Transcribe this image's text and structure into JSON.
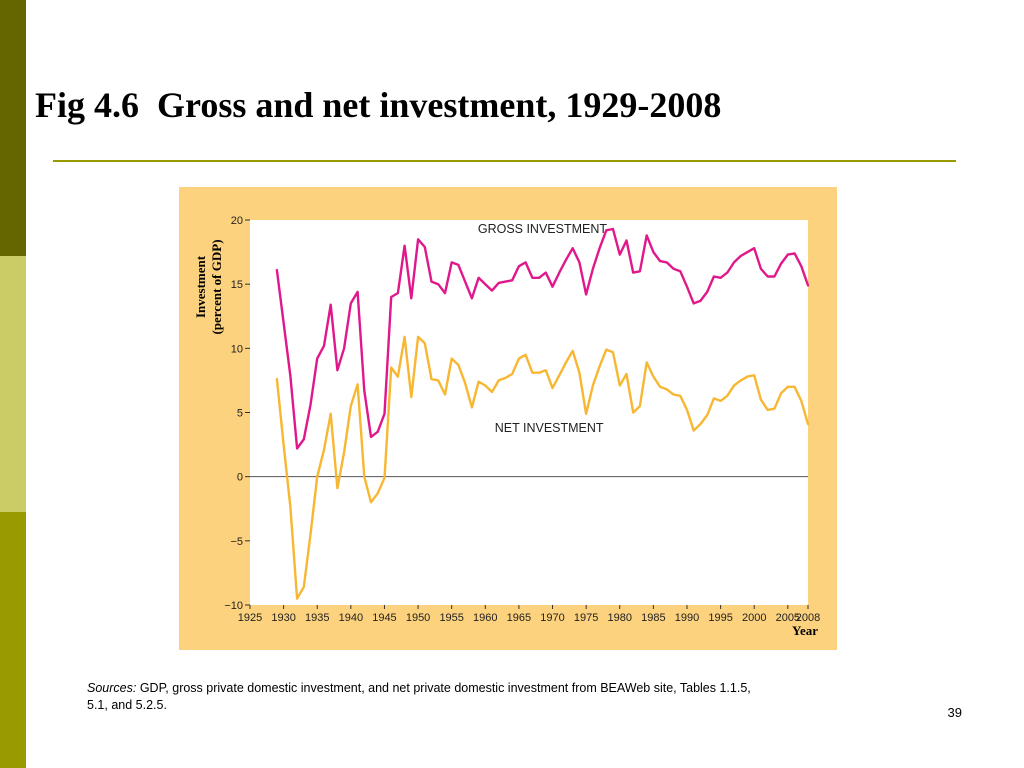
{
  "slide": {
    "title": "Fig 4.6  Gross and net investment, 1929-2008",
    "sources_label": "Sources:",
    "sources_text": " GDP, gross private domestic investment, and net private domestic investment from BEAWeb site, Tables 1.1.5, 5.1, and 5.2.5.",
    "page_number": "39"
  },
  "colors": {
    "bar_top": "#666600",
    "bar_mid": "#cccc66",
    "bar_bottom": "#999900",
    "rule": "#999900",
    "panel_bg": "#fdd27e",
    "plot_bg": "#ffffff",
    "gross_line": "#e0188c",
    "net_line": "#f7b733",
    "zero_line": "#555555"
  },
  "chart_data": {
    "type": "line",
    "title": "",
    "xlabel": "Year",
    "ylabel_line1": "Investment",
    "ylabel_line2": "(percent of GDP)",
    "xlim": [
      1925,
      2008
    ],
    "ylim": [
      -10,
      20
    ],
    "x_ticks": [
      1925,
      1930,
      1935,
      1940,
      1945,
      1950,
      1955,
      1960,
      1965,
      1970,
      1975,
      1980,
      1985,
      1990,
      1995,
      2000,
      2005,
      2008
    ],
    "y_ticks": [
      20,
      15,
      10,
      5,
      0,
      -5,
      -10
    ],
    "y_tick_labels": [
      "20",
      "15",
      "10",
      "5",
      "0",
      "−5",
      "−10"
    ],
    "grid": false,
    "series": [
      {
        "name": "GROSS INVESTMENT",
        "x": [
          1929,
          1930,
          1931,
          1932,
          1933,
          1934,
          1935,
          1936,
          1937,
          1938,
          1939,
          1940,
          1941,
          1942,
          1943,
          1944,
          1945,
          1946,
          1947,
          1948,
          1949,
          1950,
          1951,
          1952,
          1953,
          1954,
          1955,
          1956,
          1957,
          1958,
          1959,
          1960,
          1961,
          1962,
          1963,
          1964,
          1965,
          1966,
          1967,
          1968,
          1969,
          1970,
          1971,
          1972,
          1973,
          1974,
          1975,
          1976,
          1977,
          1978,
          1979,
          1980,
          1981,
          1982,
          1983,
          1984,
          1985,
          1986,
          1987,
          1988,
          1989,
          1990,
          1991,
          1992,
          1993,
          1994,
          1995,
          1996,
          1997,
          1998,
          1999,
          2000,
          2001,
          2002,
          2003,
          2004,
          2005,
          2006,
          2007,
          2008
        ],
        "values": [
          16.1,
          12.0,
          7.9,
          2.2,
          2.9,
          5.6,
          9.2,
          10.2,
          13.4,
          8.3,
          10.0,
          13.5,
          14.4,
          6.7,
          3.1,
          3.5,
          4.9,
          14.0,
          14.3,
          18.0,
          13.9,
          18.5,
          17.9,
          15.2,
          15.0,
          14.3,
          16.7,
          16.5,
          15.2,
          13.9,
          15.5,
          15.0,
          14.5,
          15.1,
          15.2,
          15.3,
          16.4,
          16.7,
          15.5,
          15.5,
          15.9,
          14.8,
          15.9,
          16.9,
          17.8,
          16.7,
          14.2,
          16.2,
          17.8,
          19.2,
          19.3,
          17.3,
          18.4,
          15.9,
          16.0,
          18.8,
          17.5,
          16.8,
          16.7,
          16.2,
          16.0,
          14.8,
          13.5,
          13.7,
          14.4,
          15.6,
          15.5,
          15.9,
          16.7,
          17.2,
          17.5,
          17.8,
          16.2,
          15.6,
          15.6,
          16.6,
          17.3,
          17.4,
          16.4,
          14.9
        ]
      },
      {
        "name": "NET INVESTMENT",
        "x": [
          1929,
          1930,
          1931,
          1932,
          1933,
          1934,
          1935,
          1936,
          1937,
          1938,
          1939,
          1940,
          1941,
          1942,
          1943,
          1944,
          1945,
          1946,
          1947,
          1948,
          1949,
          1950,
          1951,
          1952,
          1953,
          1954,
          1955,
          1956,
          1957,
          1958,
          1959,
          1960,
          1961,
          1962,
          1963,
          1964,
          1965,
          1966,
          1967,
          1968,
          1969,
          1970,
          1971,
          1972,
          1973,
          1974,
          1975,
          1976,
          1977,
          1978,
          1979,
          1980,
          1981,
          1982,
          1983,
          1984,
          1985,
          1986,
          1987,
          1988,
          1989,
          1990,
          1991,
          1992,
          1993,
          1994,
          1995,
          1996,
          1997,
          1998,
          1999,
          2000,
          2001,
          2002,
          2003,
          2004,
          2005,
          2006,
          2007,
          2008
        ],
        "values": [
          7.6,
          2.5,
          -2.3,
          -9.5,
          -8.6,
          -4.5,
          0.0,
          2.1,
          4.9,
          -0.9,
          1.9,
          5.5,
          7.2,
          0.0,
          -2.0,
          -1.3,
          -0.1,
          8.5,
          7.8,
          10.9,
          6.2,
          10.9,
          10.4,
          7.6,
          7.5,
          6.4,
          9.2,
          8.7,
          7.3,
          5.4,
          7.4,
          7.1,
          6.6,
          7.5,
          7.7,
          8.0,
          9.2,
          9.5,
          8.1,
          8.1,
          8.3,
          6.9,
          7.9,
          8.9,
          9.8,
          8.1,
          4.9,
          7.1,
          8.6,
          9.9,
          9.7,
          7.1,
          8.0,
          5.0,
          5.5,
          8.9,
          7.8,
          7.0,
          6.8,
          6.4,
          6.3,
          5.2,
          3.6,
          4.1,
          4.8,
          6.1,
          5.9,
          6.3,
          7.1,
          7.5,
          7.8,
          7.9,
          6.0,
          5.2,
          5.3,
          6.5,
          7.0,
          7.0,
          5.9,
          4.1
        ]
      }
    ],
    "annotations": [
      {
        "text": "GROSS INVESTMENT",
        "series": 0
      },
      {
        "text": "NET INVESTMENT",
        "series": 1
      }
    ]
  }
}
